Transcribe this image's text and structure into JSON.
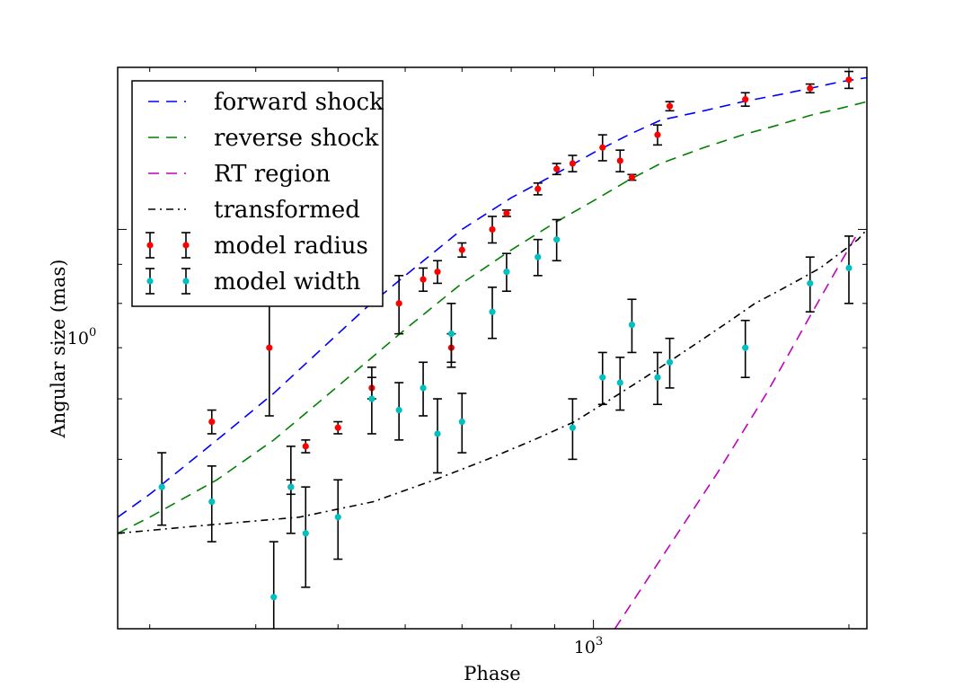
{
  "chart_data": {
    "type": "scatter",
    "title": "",
    "xlabel": "Phase",
    "ylabel": "Angular size (mas)",
    "x_scale": "log",
    "y_scale": "log",
    "xlim": [
      275,
      2100
    ],
    "ylim": [
      0.3,
      1.63
    ],
    "x_tick_label": {
      "base": "10",
      "exponent": "3",
      "value": 1000
    },
    "y_tick_label": {
      "base": "10",
      "exponent": "0",
      "value": 1
    },
    "legend_position": "upper-left",
    "grid": false,
    "series": [
      {
        "name": "forward shock",
        "kind": "line",
        "style": "dashed",
        "color": "#0000ff",
        "x": [
          275,
          300,
          360,
          420,
          480,
          540,
          600,
          700,
          800,
          900,
          1000,
          1100,
          1200,
          1350,
          1500,
          1650,
          1800,
          1950,
          2100
        ],
        "y": [
          0.42,
          0.45,
          0.53,
          0.61,
          0.7,
          0.79,
          0.87,
          1.0,
          1.1,
          1.18,
          1.26,
          1.33,
          1.39,
          1.43,
          1.47,
          1.5,
          1.53,
          1.56,
          1.58
        ]
      },
      {
        "name": "reverse shock",
        "kind": "line",
        "style": "dashed",
        "color": "#008000",
        "x": [
          275,
          300,
          360,
          420,
          480,
          540,
          600,
          700,
          800,
          900,
          1000,
          1100,
          1200,
          1350,
          1500,
          1650,
          1800,
          1950,
          2100
        ],
        "y": [
          0.4,
          0.42,
          0.47,
          0.53,
          0.6,
          0.67,
          0.74,
          0.85,
          0.94,
          1.02,
          1.09,
          1.16,
          1.22,
          1.28,
          1.33,
          1.37,
          1.41,
          1.44,
          1.47
        ]
      },
      {
        "name": "RT region",
        "kind": "line",
        "style": "dashed",
        "color": "#bf00bf",
        "x": [
          1060,
          1200,
          1400,
          1600,
          1800,
          1950,
          2050
        ],
        "y": [
          0.3,
          0.37,
          0.48,
          0.61,
          0.77,
          0.9,
          0.99
        ]
      },
      {
        "name": "transformed",
        "kind": "line",
        "style": "dashdot",
        "color": "#000000",
        "x": [
          275,
          350,
          450,
          550,
          650,
          750,
          850,
          950,
          1050,
          1150,
          1250,
          1350,
          1450,
          1550,
          1650,
          1750,
          1850,
          1950,
          2050,
          2100
        ],
        "y": [
          0.4,
          0.41,
          0.42,
          0.44,
          0.47,
          0.5,
          0.53,
          0.56,
          0.6,
          0.64,
          0.68,
          0.72,
          0.76,
          0.8,
          0.83,
          0.86,
          0.89,
          0.93,
          0.97,
          1.0
        ]
      },
      {
        "name": "model radius",
        "kind": "errorbar",
        "color": "#ff0000",
        "x": [
          310,
          355,
          415,
          440,
          458,
          500,
          548,
          590,
          630,
          655,
          680,
          700,
          760,
          790,
          860,
          905,
          945,
          1025,
          1075,
          1110,
          1190,
          1230,
          1510,
          1800,
          2000
        ],
        "y": [
          0.98,
          0.56,
          0.7,
          0.46,
          0.52,
          0.55,
          0.62,
          0.8,
          0.86,
          0.88,
          0.7,
          0.94,
          1.0,
          1.05,
          1.13,
          1.2,
          1.22,
          1.28,
          1.23,
          1.17,
          1.33,
          1.45,
          1.48,
          1.53,
          1.57
        ],
        "yerr": [
          0.01,
          0.02,
          0.13,
          0.01,
          0.01,
          0.01,
          0.02,
          0.07,
          0.03,
          0.03,
          0.03,
          0.02,
          0.04,
          0.01,
          0.02,
          0.02,
          0.03,
          0.05,
          0.04,
          0.01,
          0.04,
          0.02,
          0.03,
          0.02,
          0.04
        ]
      },
      {
        "name": "model width",
        "kind": "errorbar",
        "color": "#00bfbf",
        "x": [
          310,
          355,
          420,
          440,
          458,
          500,
          548,
          590,
          630,
          655,
          680,
          700,
          760,
          790,
          860,
          905,
          945,
          1025,
          1075,
          1110,
          1190,
          1230,
          1510,
          1800,
          2000
        ],
        "y": [
          0.46,
          0.44,
          0.33,
          0.46,
          0.4,
          0.42,
          0.6,
          0.58,
          0.62,
          0.54,
          0.73,
          0.56,
          0.78,
          0.88,
          0.92,
          0.97,
          0.55,
          0.64,
          0.63,
          0.75,
          0.64,
          0.67,
          0.7,
          0.85,
          0.89
        ],
        "yerr": [
          0.05,
          0.05,
          0.06,
          0.06,
          0.06,
          0.05,
          0.06,
          0.05,
          0.05,
          0.06,
          0.07,
          0.05,
          0.06,
          0.05,
          0.05,
          0.06,
          0.05,
          0.05,
          0.05,
          0.06,
          0.05,
          0.05,
          0.06,
          0.07,
          0.09
        ]
      }
    ]
  }
}
